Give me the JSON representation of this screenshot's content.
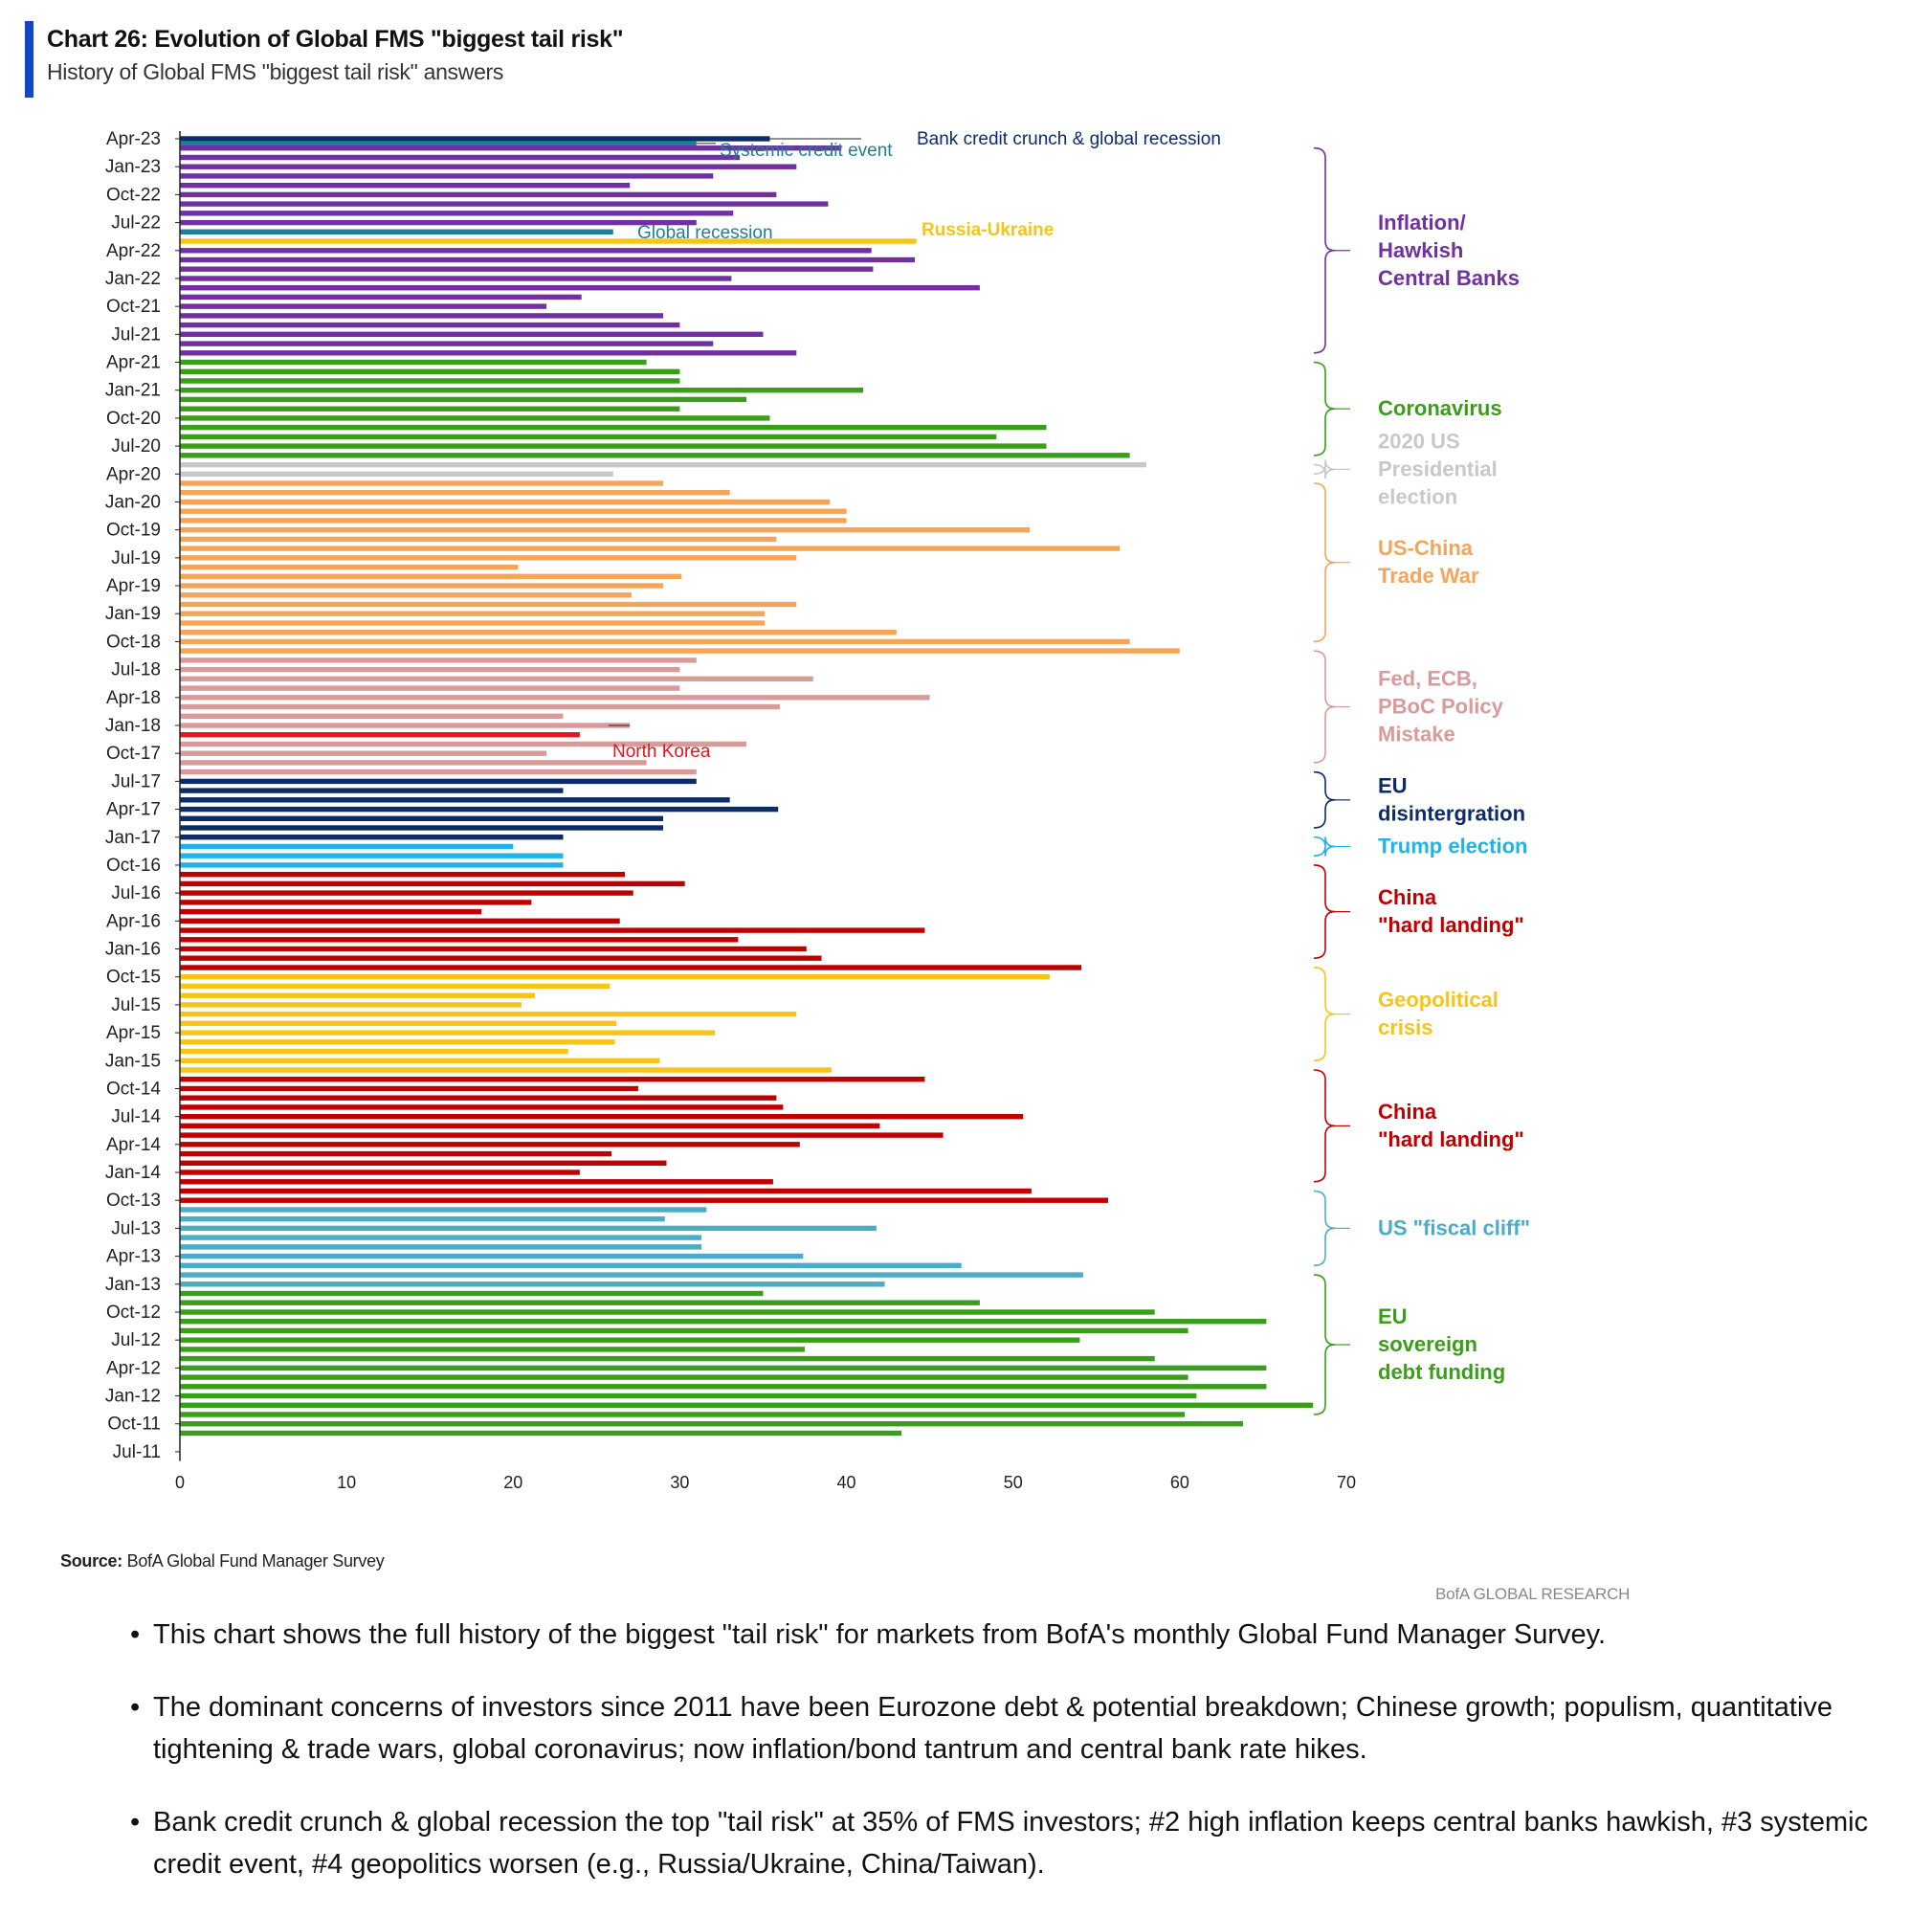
{
  "header": {
    "title": "Chart 26: Evolution of Global FMS \"biggest tail risk\"",
    "subtitle": "History of Global FMS \"biggest tail risk\" answers"
  },
  "footer": {
    "source_label": "Source:",
    "source_text": "BofA Global Fund Manager Survey",
    "brand": "BofA GLOBAL RESEARCH"
  },
  "bullets": [
    "This chart shows the full history of the biggest \"tail risk\" for markets from BofA's monthly Global Fund Manager Survey.",
    "The dominant concerns of investors since 2011 have been Eurozone debt & potential breakdown; Chinese growth; populism, quantitative tightening & trade wars, global coronavirus; now inflation/bond tantrum and central bank rate hikes.",
    "Bank credit crunch & global recession the top \"tail risk\" at 35% of FMS investors; #2 high inflation keeps central banks hawkish, #3 systemic credit event, #4 geopolitics worsen (e.g., Russia/Ukraine, China/Taiwan)."
  ],
  "chart_data": {
    "type": "bar",
    "orientation": "horizontal",
    "title": "Chart 26: Evolution of Global FMS \"biggest tail risk\"",
    "subtitle": "History of Global FMS \"biggest tail risk\" answers",
    "xlim": [
      0,
      70
    ],
    "x_ticks": [
      0,
      10,
      20,
      30,
      40,
      50,
      60,
      70
    ],
    "y_tick_labels": [
      "Apr-23",
      "Jan-23",
      "Oct-22",
      "Jul-22",
      "Apr-22",
      "Jan-22",
      "Oct-21",
      "Jul-21",
      "Apr-21",
      "Jan-21",
      "Oct-20",
      "Jul-20",
      "Apr-20",
      "Jan-20",
      "Oct-19",
      "Jul-19",
      "Apr-19",
      "Jan-19",
      "Oct-18",
      "Jul-18",
      "Apr-18",
      "Jan-18",
      "Oct-17",
      "Jul-17",
      "Apr-17",
      "Jan-17",
      "Oct-16",
      "Jul-16",
      "Apr-16",
      "Jan-16",
      "Oct-15",
      "Jul-15",
      "Apr-15",
      "Jan-15",
      "Oct-14",
      "Jul-14",
      "Apr-14",
      "Jan-14",
      "Oct-13",
      "Jul-13",
      "Apr-13",
      "Jan-13",
      "Oct-12",
      "Jul-12",
      "Apr-12",
      "Jan-12",
      "Oct-11",
      "Jul-11"
    ],
    "grid": false,
    "legend": "none",
    "colors": {
      "bank": "#0d2b6b",
      "systemic": "#1d7e96",
      "inflation": "#7030a0",
      "globalrec": "#1d7e96",
      "russia": "#f5c518",
      "corona": "#3a9e1a",
      "election2020": "#c8c8c8",
      "tradewar": "#f5a55a",
      "policy": "#d99a9a",
      "northkorea": "#e8141e",
      "eu": "#0d2b6b",
      "trump": "#1fb3e6",
      "china": "#c00000",
      "geo": "#f5c518",
      "fiscal": "#4bacc6",
      "eudebt": "#3a9e1a"
    },
    "series": [
      {
        "name": "Bank credit crunch & global recession",
        "key": "bank"
      },
      {
        "name": "Systemic credit event",
        "key": "systemic"
      },
      {
        "name": "Inflation/ Hawkish Central Banks",
        "key": "inflation"
      },
      {
        "name": "Global recession",
        "key": "globalrec"
      },
      {
        "name": "Russia-Ukraine",
        "key": "russia"
      },
      {
        "name": "Coronavirus",
        "key": "corona"
      },
      {
        "name": "2020 US Presidential election",
        "key": "election2020"
      },
      {
        "name": "US-China Trade War",
        "key": "tradewar"
      },
      {
        "name": "Fed, ECB, PBoC Policy Mistake",
        "key": "policy"
      },
      {
        "name": "North Korea",
        "key": "northkorea"
      },
      {
        "name": "EU disintergration",
        "key": "eu"
      },
      {
        "name": "Trump election",
        "key": "trump"
      },
      {
        "name": "China \"hard landing\"",
        "key": "china"
      },
      {
        "name": "Geopolitical crisis",
        "key": "geo"
      },
      {
        "name": "US \"fiscal cliff\"",
        "key": "fiscal"
      },
      {
        "name": "EU sovereign debt funding",
        "key": "eudebt"
      }
    ],
    "bars": [
      {
        "date": "Apr-23",
        "value": 35.4,
        "key": "bank"
      },
      {
        "date": "Apr-23",
        "value": 31.0,
        "key": "systemic"
      },
      {
        "date": "Mar-23",
        "value": 39.7,
        "key": "inflation"
      },
      {
        "date": "Feb-23",
        "value": 33.6,
        "key": "inflation"
      },
      {
        "date": "Jan-23",
        "value": 37.0,
        "key": "inflation"
      },
      {
        "date": "Dec-22",
        "value": 32.0,
        "key": "inflation"
      },
      {
        "date": "Nov-22",
        "value": 27.0,
        "key": "inflation"
      },
      {
        "date": "Oct-22",
        "value": 35.8,
        "key": "inflation"
      },
      {
        "date": "Sep-22",
        "value": 38.9,
        "key": "inflation"
      },
      {
        "date": "Aug-22",
        "value": 33.2,
        "key": "inflation"
      },
      {
        "date": "Jul-22",
        "value": 31.0,
        "key": "inflation"
      },
      {
        "date": "Jun-22",
        "value": 26.0,
        "key": "globalrec"
      },
      {
        "date": "May-22",
        "value": 44.2,
        "key": "russia"
      },
      {
        "date": "Apr-22",
        "value": 41.5,
        "key": "inflation"
      },
      {
        "date": "Mar-22",
        "value": 44.1,
        "key": "inflation"
      },
      {
        "date": "Feb-22",
        "value": 41.6,
        "key": "inflation"
      },
      {
        "date": "Jan-22",
        "value": 33.1,
        "key": "inflation"
      },
      {
        "date": "Dec-21",
        "value": 48.0,
        "key": "inflation"
      },
      {
        "date": "Nov-21",
        "value": 24.1,
        "key": "inflation"
      },
      {
        "date": "Oct-21",
        "value": 22.0,
        "key": "inflation"
      },
      {
        "date": "Sep-21",
        "value": 29.0,
        "key": "inflation"
      },
      {
        "date": "Aug-21",
        "value": 30.0,
        "key": "inflation"
      },
      {
        "date": "Jul-21",
        "value": 35.0,
        "key": "inflation"
      },
      {
        "date": "Jun-21",
        "value": 32.0,
        "key": "inflation"
      },
      {
        "date": "May-21",
        "value": 37.0,
        "key": "inflation"
      },
      {
        "date": "Apr-21",
        "value": 28.0,
        "key": "corona"
      },
      {
        "date": "Mar-21",
        "value": 30.0,
        "key": "corona"
      },
      {
        "date": "Feb-21",
        "value": 30.0,
        "key": "corona"
      },
      {
        "date": "Jan-21",
        "value": 41.0,
        "key": "corona"
      },
      {
        "date": "Dec-20",
        "value": 34.0,
        "key": "corona"
      },
      {
        "date": "Nov-20",
        "value": 30.0,
        "key": "corona"
      },
      {
        "date": "Oct-20",
        "value": 35.4,
        "key": "corona"
      },
      {
        "date": "Sep-20",
        "value": 52.0,
        "key": "corona"
      },
      {
        "date": "Aug-20",
        "value": 49.0,
        "key": "corona"
      },
      {
        "date": "Jul-20",
        "value": 52.0,
        "key": "corona"
      },
      {
        "date": "Jun-20",
        "value": 57.0,
        "key": "corona"
      },
      {
        "date": "May-20",
        "value": 58.0,
        "key": "election2020"
      },
      {
        "date": "Apr-20",
        "value": 26.0,
        "key": "election2020"
      },
      {
        "date": "Mar-20",
        "value": 29.0,
        "key": "tradewar"
      },
      {
        "date": "Feb-20",
        "value": 33.0,
        "key": "tradewar"
      },
      {
        "date": "Jan-20",
        "value": 39.0,
        "key": "tradewar"
      },
      {
        "date": "Dec-19",
        "value": 40.0,
        "key": "tradewar"
      },
      {
        "date": "Nov-19",
        "value": 40.0,
        "key": "tradewar"
      },
      {
        "date": "Oct-19",
        "value": 51.0,
        "key": "tradewar"
      },
      {
        "date": "Sep-19",
        "value": 35.8,
        "key": "tradewar"
      },
      {
        "date": "Aug-19",
        "value": 56.4,
        "key": "tradewar"
      },
      {
        "date": "Jul-19",
        "value": 37.0,
        "key": "tradewar"
      },
      {
        "date": "Jun-19",
        "value": 20.3,
        "key": "tradewar"
      },
      {
        "date": "May-19",
        "value": 30.1,
        "key": "tradewar"
      },
      {
        "date": "Apr-19",
        "value": 29.0,
        "key": "tradewar"
      },
      {
        "date": "Mar-19",
        "value": 27.1,
        "key": "tradewar"
      },
      {
        "date": "Feb-19",
        "value": 37.0,
        "key": "tradewar"
      },
      {
        "date": "Jan-19",
        "value": 35.1,
        "key": "tradewar"
      },
      {
        "date": "Dec-18",
        "value": 35.1,
        "key": "tradewar"
      },
      {
        "date": "Nov-18",
        "value": 43.0,
        "key": "tradewar"
      },
      {
        "date": "Oct-18",
        "value": 57.0,
        "key": "tradewar"
      },
      {
        "date": "Sep-18",
        "value": 60.0,
        "key": "tradewar"
      },
      {
        "date": "Aug-18",
        "value": 31.0,
        "key": "policy"
      },
      {
        "date": "Jul-18",
        "value": 30.0,
        "key": "policy"
      },
      {
        "date": "Jun-18",
        "value": 38.0,
        "key": "policy"
      },
      {
        "date": "May-18",
        "value": 30.0,
        "key": "policy"
      },
      {
        "date": "Apr-18",
        "value": 45.0,
        "key": "policy"
      },
      {
        "date": "Mar-18",
        "value": 36.0,
        "key": "policy"
      },
      {
        "date": "Feb-18",
        "value": 23.0,
        "key": "policy"
      },
      {
        "date": "Jan-18",
        "value": 27.0,
        "key": "policy"
      },
      {
        "date": "Dec-17",
        "value": 24.0,
        "key": "northkorea"
      },
      {
        "date": "Nov-17",
        "value": 34.0,
        "key": "policy"
      },
      {
        "date": "Oct-17",
        "value": 22.0,
        "key": "policy"
      },
      {
        "date": "Sep-17",
        "value": 28.0,
        "key": "policy"
      },
      {
        "date": "Aug-17",
        "value": 31.0,
        "key": "policy"
      },
      {
        "date": "Jul-17",
        "value": 31.0,
        "key": "eu"
      },
      {
        "date": "Jun-17",
        "value": 23.0,
        "key": "eu"
      },
      {
        "date": "May-17",
        "value": 33.0,
        "key": "eu"
      },
      {
        "date": "Apr-17",
        "value": 35.9,
        "key": "eu"
      },
      {
        "date": "Mar-17",
        "value": 29.0,
        "key": "eu"
      },
      {
        "date": "Feb-17",
        "value": 29.0,
        "key": "eu"
      },
      {
        "date": "Jan-17",
        "value": 23.0,
        "key": "eu"
      },
      {
        "date": "Dec-16",
        "value": 20.0,
        "key": "trump"
      },
      {
        "date": "Nov-16",
        "value": 23.0,
        "key": "trump"
      },
      {
        "date": "Oct-16",
        "value": 23.0,
        "key": "trump"
      },
      {
        "date": "Sep-16",
        "value": 26.7,
        "key": "china"
      },
      {
        "date": "Aug-16",
        "value": 30.3,
        "key": "china"
      },
      {
        "date": "Jul-16",
        "value": 27.2,
        "key": "china"
      },
      {
        "date": "Jun-16",
        "value": 21.1,
        "key": "china"
      },
      {
        "date": "May-16",
        "value": 18.1,
        "key": "china"
      },
      {
        "date": "Apr-16",
        "value": 26.4,
        "key": "china"
      },
      {
        "date": "Mar-16",
        "value": 44.7,
        "key": "china"
      },
      {
        "date": "Feb-16",
        "value": 33.5,
        "key": "china"
      },
      {
        "date": "Jan-16",
        "value": 37.6,
        "key": "china"
      },
      {
        "date": "Dec-15",
        "value": 38.5,
        "key": "china"
      },
      {
        "date": "Nov-15",
        "value": 54.1,
        "key": "china"
      },
      {
        "date": "Oct-15",
        "value": 52.2,
        "key": "geo"
      },
      {
        "date": "Sep-15",
        "value": 25.8,
        "key": "geo"
      },
      {
        "date": "Aug-15",
        "value": 21.3,
        "key": "geo"
      },
      {
        "date": "Jul-15",
        "value": 20.5,
        "key": "geo"
      },
      {
        "date": "Jun-15",
        "value": 37.0,
        "key": "geo"
      },
      {
        "date": "May-15",
        "value": 26.2,
        "key": "geo"
      },
      {
        "date": "Apr-15",
        "value": 32.1,
        "key": "geo"
      },
      {
        "date": "Mar-15",
        "value": 26.1,
        "key": "geo"
      },
      {
        "date": "Feb-15",
        "value": 23.3,
        "key": "geo"
      },
      {
        "date": "Jan-15",
        "value": 28.8,
        "key": "geo"
      },
      {
        "date": "Dec-14",
        "value": 39.1,
        "key": "geo"
      },
      {
        "date": "Nov-14",
        "value": 44.7,
        "key": "china"
      },
      {
        "date": "Oct-14",
        "value": 27.5,
        "key": "china"
      },
      {
        "date": "Sep-14",
        "value": 35.8,
        "key": "china"
      },
      {
        "date": "Aug-14",
        "value": 36.2,
        "key": "china"
      },
      {
        "date": "Jul-14",
        "value": 50.6,
        "key": "china"
      },
      {
        "date": "Jun-14",
        "value": 42.0,
        "key": "china"
      },
      {
        "date": "May-14",
        "value": 45.8,
        "key": "china"
      },
      {
        "date": "Apr-14",
        "value": 37.2,
        "key": "china"
      },
      {
        "date": "Mar-14",
        "value": 25.9,
        "key": "china"
      },
      {
        "date": "Feb-14",
        "value": 29.2,
        "key": "china"
      },
      {
        "date": "Jan-14",
        "value": 24.0,
        "key": "china"
      },
      {
        "date": "Dec-13",
        "value": 35.6,
        "key": "china"
      },
      {
        "date": "Nov-13",
        "value": 51.1,
        "key": "china"
      },
      {
        "date": "Oct-13",
        "value": 55.7,
        "key": "china"
      },
      {
        "date": "Sep-13",
        "value": 31.6,
        "key": "fiscal"
      },
      {
        "date": "Aug-13",
        "value": 29.1,
        "key": "fiscal"
      },
      {
        "date": "Jul-13",
        "value": 41.8,
        "key": "fiscal"
      },
      {
        "date": "Jun-13",
        "value": 31.3,
        "key": "fiscal"
      },
      {
        "date": "May-13",
        "value": 31.3,
        "key": "fiscal"
      },
      {
        "date": "Apr-13",
        "value": 37.4,
        "key": "fiscal"
      },
      {
        "date": "Mar-13",
        "value": 46.9,
        "key": "fiscal"
      },
      {
        "date": "Feb-13",
        "value": 54.2,
        "key": "fiscal"
      },
      {
        "date": "Jan-13",
        "value": 42.3,
        "key": "fiscal"
      },
      {
        "date": "Dec-12",
        "value": 35.0,
        "key": "eudebt"
      },
      {
        "date": "Nov-12",
        "value": 48.0,
        "key": "eudebt"
      },
      {
        "date": "Oct-12",
        "value": 58.5,
        "key": "eudebt"
      },
      {
        "date": "Sep-12",
        "value": 65.2,
        "key": "eudebt"
      },
      {
        "date": "Aug-12",
        "value": 60.5,
        "key": "eudebt"
      },
      {
        "date": "Jul-12",
        "value": 54.0,
        "key": "eudebt"
      },
      {
        "date": "Jun-12",
        "value": 37.5,
        "key": "eudebt"
      },
      {
        "date": "May-12",
        "value": 58.5,
        "key": "eudebt"
      },
      {
        "date": "Apr-12",
        "value": 65.2,
        "key": "eudebt"
      },
      {
        "date": "Mar-12",
        "value": 60.5,
        "key": "eudebt"
      },
      {
        "date": "Feb-12",
        "value": 65.2,
        "key": "eudebt"
      },
      {
        "date": "Jan-12",
        "value": 61.0,
        "key": "eudebt"
      },
      {
        "date": "Dec-11",
        "value": 68.0,
        "key": "eudebt"
      },
      {
        "date": "Nov-11",
        "value": 60.3,
        "key": "eudebt"
      },
      {
        "date": "Oct-11",
        "value": 63.8,
        "key": "eudebt"
      },
      {
        "date": "Sep-11",
        "value": 43.3,
        "key": "eudebt"
      }
    ],
    "callouts": [
      {
        "text": "Bank credit crunch & global recession",
        "key": "bank",
        "bar": 0
      },
      {
        "text": "Systemic credit event",
        "key": "systemic",
        "bar": 1
      },
      {
        "text": "Global recession",
        "key": "globalrec",
        "bar": 11
      },
      {
        "text": "Russia-Ukraine",
        "key": "russia",
        "bar": 12
      },
      {
        "text": "North Korea",
        "key": "northkorea",
        "bar": 64
      }
    ],
    "group_labels": [
      {
        "lines": [
          "Inflation/",
          "Hawkish",
          "Central Banks"
        ],
        "key": "inflation",
        "from": 2,
        "to": 24
      },
      {
        "lines": [
          "Coronavirus"
        ],
        "key": "corona",
        "from": 25,
        "to": 35
      },
      {
        "lines": [
          "2020 US",
          "Presidential",
          "election"
        ],
        "key": "election2020",
        "from": 36,
        "to": 37
      },
      {
        "lines": [
          "US-China",
          "Trade War"
        ],
        "key": "tradewar",
        "from": 38,
        "to": 55
      },
      {
        "lines": [
          "Fed, ECB,",
          "PBoC Policy",
          "Mistake"
        ],
        "key": "policy",
        "from": 56,
        "to": 68
      },
      {
        "lines": [
          "EU",
          "disintergration"
        ],
        "key": "eu",
        "from": 69,
        "to": 75
      },
      {
        "lines": [
          "Trump election"
        ],
        "key": "trump",
        "from": 76,
        "to": 78
      },
      {
        "lines": [
          "China",
          "\"hard landing\""
        ],
        "key": "china",
        "from": 79,
        "to": 89
      },
      {
        "lines": [
          "Geopolitical",
          "crisis"
        ],
        "key": "geo",
        "from": 90,
        "to": 100
      },
      {
        "lines": [
          "China",
          "\"hard landing\""
        ],
        "key": "china",
        "from": 101,
        "to": 113
      },
      {
        "lines": [
          "US \"fiscal cliff\""
        ],
        "key": "fiscal",
        "from": 114,
        "to": 122
      },
      {
        "lines": [
          "EU",
          "sovereign",
          "debt funding"
        ],
        "key": "eudebt",
        "from": 123,
        "to": 138
      }
    ]
  }
}
